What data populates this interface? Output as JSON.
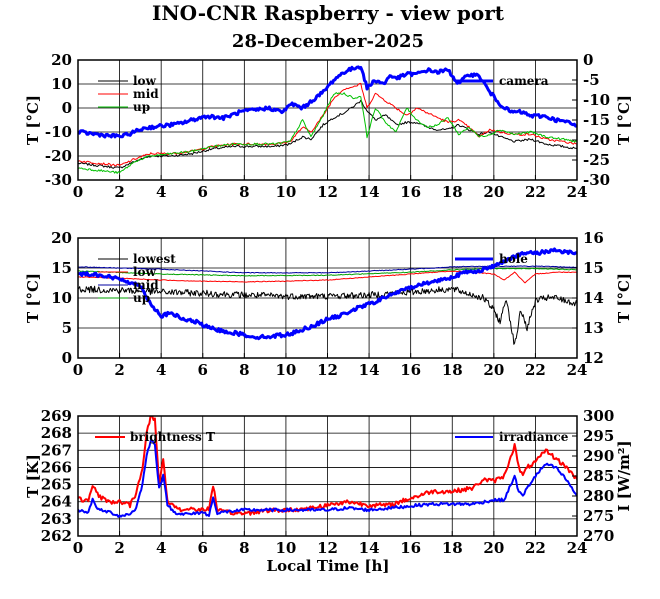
{
  "figure": {
    "title": "INO-CNR Raspberry - view port",
    "subtitle": "28-December-2025",
    "xlabel": "Local Time [h]"
  },
  "chart_data": [
    {
      "type": "line",
      "xticks": [
        0,
        2,
        4,
        6,
        8,
        10,
        12,
        14,
        16,
        18,
        20,
        22,
        24
      ],
      "xlim": [
        0,
        24
      ],
      "ylabel": "T [°C]",
      "ylim": [
        -30,
        20
      ],
      "yticks": [
        -30,
        -20,
        -10,
        0,
        10,
        20
      ],
      "y2label": "T [°C]",
      "y2lim": [
        -30,
        0
      ],
      "y2ticks": [
        -30,
        -25,
        -20,
        -15,
        -10,
        -5,
        0
      ],
      "grid": true,
      "legend_left": "top-left",
      "legend_right": "top-right",
      "series": [
        {
          "name": "low",
          "axis": "left",
          "color": "#000000",
          "width": 1,
          "x": [
            0,
            1,
            2,
            2.8,
            3.5,
            4.5,
            5.5,
            6.5,
            7.5,
            8.5,
            9.5,
            10.2,
            10.8,
            11.2,
            11.8,
            12.3,
            12.8,
            13.3,
            13.6,
            13.9,
            14.3,
            14.8,
            15.3,
            15.8,
            16.3,
            16.8,
            17.3,
            17.8,
            18.3,
            18.8,
            19.3,
            19.8,
            20.3,
            21,
            21.8,
            22.5,
            23.3,
            24
          ],
          "y": [
            -23,
            -24,
            -25,
            -22,
            -20,
            -20,
            -19,
            -17,
            -16,
            -16,
            -16,
            -15,
            -12,
            -13,
            -7,
            -4,
            -2,
            1,
            3,
            -1,
            -5,
            -3,
            -7,
            -6,
            -6,
            -8,
            -9,
            -9,
            -7,
            -9,
            -11,
            -10,
            -12,
            -14,
            -13,
            -15,
            -16,
            -17
          ]
        },
        {
          "name": "mid",
          "axis": "left",
          "color": "#ff0000",
          "width": 1,
          "x": [
            0,
            1,
            2,
            2.8,
            3.5,
            4.5,
            5.5,
            6.5,
            7.5,
            8.5,
            9.5,
            10.2,
            10.8,
            11.2,
            11.8,
            12.3,
            12.8,
            13.3,
            13.6,
            13.9,
            14.3,
            14.8,
            15.3,
            15.8,
            16.3,
            16.8,
            17.3,
            17.8,
            18.3,
            18.8,
            19.3,
            19.8,
            20.3,
            21,
            21.8,
            22.5,
            23.3,
            24
          ],
          "y": [
            -22,
            -23,
            -24,
            -21,
            -19,
            -19,
            -18,
            -16,
            -15,
            -15,
            -15,
            -14,
            -8,
            -10,
            -3,
            4,
            8,
            9,
            10,
            0,
            6,
            3,
            0,
            -3,
            0,
            -2,
            -4,
            -6,
            -5,
            -8,
            -12,
            -9,
            -10,
            -11,
            -11,
            -13,
            -14,
            -15
          ]
        },
        {
          "name": "up",
          "axis": "left",
          "color": "#00c000",
          "width": 1,
          "x": [
            0,
            1,
            2,
            2.8,
            3.5,
            4.5,
            5.5,
            6.5,
            7.5,
            8.5,
            9.5,
            10.2,
            10.8,
            11.2,
            11.8,
            12.3,
            12.8,
            13.3,
            13.6,
            13.9,
            14.3,
            14.8,
            15.3,
            15.8,
            16.3,
            16.8,
            17.3,
            17.8,
            18.3,
            18.8,
            19.3,
            19.8,
            20.3,
            21,
            21.8,
            22.5,
            23.3,
            24
          ],
          "y": [
            -25,
            -26,
            -27,
            -22,
            -20,
            -19,
            -18,
            -16,
            -15,
            -15,
            -15,
            -14,
            -5,
            -12,
            -3,
            6,
            6,
            4,
            5,
            -12,
            0,
            -6,
            -10,
            0,
            -5,
            -8,
            -7,
            -4,
            -11,
            -8,
            -12,
            -11,
            -9,
            -11,
            -10,
            -12,
            -13,
            -14
          ]
        },
        {
          "name": "camera",
          "axis": "right",
          "color": "#0000ff",
          "width": 3,
          "x": [
            0,
            0.8,
            1.6,
            2.2,
            2.7,
            3.2,
            4,
            4.8,
            5.5,
            6.2,
            7,
            7.8,
            8.5,
            9.2,
            9.8,
            10.3,
            10.8,
            11.3,
            11.8,
            12.3,
            12.8,
            13.3,
            13.6,
            13.9,
            14.3,
            14.7,
            15,
            15.4,
            15.8,
            16.3,
            16.8,
            17.3,
            17.8,
            18.3,
            18.8,
            19.3,
            19.8,
            20.3,
            20.8,
            21.3,
            21.8,
            22.4,
            23,
            23.5,
            24
          ],
          "y": [
            -18,
            -18.5,
            -19,
            -19,
            -18,
            -17,
            -16.5,
            -16,
            -15,
            -14,
            -14.5,
            -13,
            -12.5,
            -12,
            -13,
            -11,
            -12,
            -10,
            -8,
            -5,
            -3,
            -2,
            -1.5,
            -7,
            -5,
            -6,
            -4,
            -4.5,
            -3.5,
            -3.5,
            -2.5,
            -3,
            -2.5,
            -6,
            -3.5,
            -4,
            -8,
            -11,
            -13,
            -13,
            -14,
            -14,
            -15,
            -15.5,
            -16.5
          ]
        }
      ]
    },
    {
      "type": "line",
      "xticks": [
        0,
        2,
        4,
        6,
        8,
        10,
        12,
        14,
        16,
        18,
        20,
        22,
        24
      ],
      "xlim": [
        0,
        24
      ],
      "ylabel": "T [°C]",
      "ylim": [
        0,
        20
      ],
      "yticks": [
        0,
        5,
        10,
        15,
        20
      ],
      "y2label": "T [°C]",
      "y2lim": [
        12,
        16
      ],
      "y2ticks": [
        12,
        13,
        14,
        15,
        16
      ],
      "grid": true,
      "legend_left": "top-left",
      "legend_right": "top-right",
      "series": [
        {
          "name": "lowest",
          "axis": "left",
          "color": "#000000",
          "width": 1,
          "x": [
            0,
            2,
            4,
            6,
            8,
            10,
            12,
            14,
            16,
            18,
            18.5,
            19,
            19.5,
            20,
            20.3,
            20.6,
            21,
            21.3,
            21.6,
            22,
            22.5,
            23,
            23.5,
            24
          ],
          "y": [
            11.5,
            11.3,
            11,
            10.8,
            10.5,
            10.3,
            10.3,
            10.5,
            11,
            11.5,
            11,
            10.5,
            10,
            8,
            6,
            10,
            2,
            8,
            5,
            9.5,
            10,
            10,
            9.5,
            9
          ]
        },
        {
          "name": "low",
          "axis": "left",
          "color": "#ff0000",
          "width": 1,
          "x": [
            0,
            2,
            4,
            6,
            8,
            10,
            12,
            14,
            16,
            18,
            19,
            20,
            20.5,
            21,
            21.5,
            22,
            23,
            24
          ],
          "y": [
            13.5,
            13.3,
            13,
            12.8,
            12.7,
            12.8,
            13,
            13.5,
            14,
            14.5,
            14.3,
            14,
            13,
            14.3,
            12.5,
            14,
            14.3,
            14.3
          ]
        },
        {
          "name": "mid",
          "axis": "left",
          "color": "#0000a0",
          "width": 1,
          "x": [
            0,
            4,
            8,
            12,
            16,
            18,
            20,
            22,
            24
          ],
          "y": [
            15.2,
            14.8,
            14.2,
            14.2,
            14.8,
            15.2,
            15.3,
            15.3,
            15.1
          ]
        },
        {
          "name": "up",
          "axis": "left",
          "color": "#00a000",
          "width": 1,
          "x": [
            0,
            4,
            8,
            12,
            16,
            18,
            20,
            22,
            24
          ],
          "y": [
            14.5,
            14,
            13.7,
            13.8,
            14.3,
            14.7,
            14.9,
            14.9,
            14.7
          ]
        },
        {
          "name": "hole",
          "axis": "right",
          "color": "#0000ff",
          "width": 3,
          "x": [
            0,
            0.8,
            1.5,
            2.2,
            3,
            3.5,
            4,
            4.5,
            5,
            5.7,
            6.3,
            7,
            7.8,
            8.5,
            9,
            9.6,
            10.2,
            10.8,
            11.4,
            12,
            12.6,
            13.2,
            13.8,
            14.4,
            15,
            15.6,
            16.2,
            16.8,
            17.4,
            18,
            18.6,
            19.2,
            19.8,
            20.4,
            21,
            21.6,
            22.2,
            22.8,
            23.4,
            24
          ],
          "y": [
            14.8,
            14.8,
            14.7,
            14.6,
            14.4,
            13.8,
            13.4,
            13.5,
            13.3,
            13.2,
            13.0,
            12.9,
            12.8,
            12.7,
            12.7,
            12.75,
            12.8,
            12.95,
            13.1,
            13.3,
            13.4,
            13.6,
            13.75,
            13.9,
            14.1,
            14.25,
            14.4,
            14.5,
            14.6,
            14.7,
            14.85,
            14.9,
            15.0,
            15.2,
            15.4,
            15.5,
            15.5,
            15.6,
            15.55,
            15.5
          ]
        }
      ]
    },
    {
      "type": "line",
      "xticks": [
        0,
        2,
        4,
        6,
        8,
        10,
        12,
        14,
        16,
        18,
        20,
        22,
        24
      ],
      "xlim": [
        0,
        24
      ],
      "ylabel": "T [K]",
      "ylim": [
        262,
        269
      ],
      "yticks": [
        262,
        263,
        264,
        265,
        266,
        267,
        268,
        269
      ],
      "y2label": "I [W/m²]",
      "y2lim": [
        270,
        300
      ],
      "y2ticks": [
        270,
        275,
        280,
        285,
        290,
        295,
        300
      ],
      "grid": true,
      "legend_left": "top-left",
      "legend_right": "top-right",
      "series": [
        {
          "name": "brightness T",
          "axis": "left",
          "color": "#ff0000",
          "width": 2,
          "x": [
            0,
            0.5,
            0.7,
            1,
            1.5,
            2,
            2.5,
            2.8,
            3.1,
            3.3,
            3.5,
            3.7,
            3.9,
            4.1,
            4.3,
            4.6,
            5,
            5.5,
            6,
            6.3,
            6.5,
            6.7,
            7,
            8,
            9,
            10,
            11,
            12,
            13,
            14,
            15,
            16,
            17,
            18,
            19,
            19.5,
            20,
            20.5,
            21,
            21.2,
            21.4,
            21.6,
            22,
            22.5,
            23,
            23.5,
            24
          ],
          "y": [
            264.2,
            264,
            265,
            264.3,
            264,
            264,
            263.8,
            264.5,
            266,
            268,
            269,
            268.8,
            265,
            266.5,
            264,
            263.8,
            263.5,
            263.6,
            263.5,
            263.6,
            265,
            263.5,
            263.4,
            263.3,
            263.5,
            263.5,
            263.6,
            263.8,
            264,
            263.8,
            263.8,
            264.2,
            264.6,
            264.6,
            264.8,
            265.3,
            265.2,
            265.5,
            267.3,
            266,
            265.5,
            266,
            266.3,
            267,
            266.5,
            266,
            265.3
          ]
        },
        {
          "name": "irradiance",
          "axis": "right",
          "color": "#0000ff",
          "width": 2,
          "x": [
            0,
            0.5,
            0.7,
            1,
            1.5,
            2,
            2.5,
            2.8,
            3.1,
            3.3,
            3.5,
            3.7,
            3.9,
            4.1,
            4.3,
            4.6,
            5,
            5.5,
            6,
            6.3,
            6.5,
            6.7,
            7,
            8,
            9,
            10,
            11,
            12,
            13,
            14,
            15,
            16,
            17,
            18,
            19,
            19.5,
            20,
            20.5,
            21,
            21.2,
            21.4,
            21.6,
            22,
            22.5,
            23,
            23.5,
            24
          ],
          "y": [
            276.5,
            276,
            279,
            276.5,
            276,
            275,
            275.5,
            277,
            283,
            290,
            294,
            293,
            282,
            285,
            278,
            276,
            275.5,
            275.5,
            276,
            275,
            280,
            275.5,
            276,
            276.5,
            276.5,
            276.5,
            276.5,
            276.5,
            277,
            276.5,
            277,
            277.5,
            278,
            278,
            278,
            278.5,
            279,
            279,
            285,
            281,
            280,
            282,
            285,
            288,
            287,
            284,
            280
          ]
        }
      ]
    }
  ]
}
